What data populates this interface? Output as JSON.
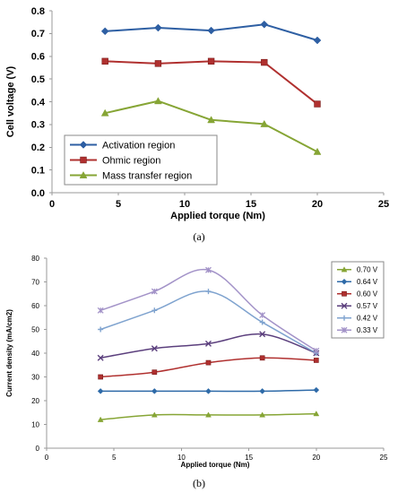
{
  "chart_data": [
    {
      "panel": "(a)",
      "type": "line",
      "title": "",
      "xlabel": "Applied torque (Nm)",
      "ylabel": "Cell voltage (V)",
      "xlim": [
        0,
        25
      ],
      "ylim": [
        0,
        0.8
      ],
      "x_ticks": [
        0,
        5,
        10,
        15,
        20,
        25
      ],
      "y_ticks": [
        0,
        0.1,
        0.2,
        0.3,
        0.4,
        0.5,
        0.6,
        0.7,
        0.8
      ],
      "grid": false,
      "legend_placement": "bottom-left",
      "x": [
        4,
        8,
        12,
        16,
        20
      ],
      "series": [
        {
          "name": "Activation region",
          "values": [
            0.71,
            0.725,
            0.713,
            0.74,
            0.67
          ],
          "color": "#2e5fa3",
          "marker": "diamond"
        },
        {
          "name": "Ohmic region",
          "values": [
            0.578,
            0.568,
            0.578,
            0.573,
            0.39
          ],
          "color": "#b0302f",
          "marker": "square"
        },
        {
          "name": "Mass transfer region",
          "values": [
            0.35,
            0.403,
            0.32,
            0.302,
            0.18
          ],
          "color": "#86a535",
          "marker": "triangle"
        }
      ]
    },
    {
      "panel": "(b)",
      "type": "line",
      "title": "",
      "xlabel": "Applied torque (Nm)",
      "ylabel": "Current density (mA/cm2)",
      "xlim": [
        0,
        25
      ],
      "ylim": [
        0,
        80
      ],
      "x_ticks": [
        0,
        5,
        10,
        15,
        20,
        25
      ],
      "y_ticks": [
        0,
        10,
        20,
        30,
        40,
        50,
        60,
        70,
        80
      ],
      "grid": false,
      "legend_placement": "right",
      "x": [
        4,
        8,
        12,
        16,
        20
      ],
      "series": [
        {
          "name": "0.70 V",
          "values": [
            12,
            14,
            14,
            14,
            14.5
          ],
          "color": "#86a535",
          "marker": "triangle"
        },
        {
          "name": "0.64 V",
          "values": [
            24,
            24,
            24,
            24,
            24.5
          ],
          "color": "#2e6aa8",
          "marker": "diamond"
        },
        {
          "name": "0.60 V",
          "values": [
            30,
            32,
            36,
            38,
            37
          ],
          "color": "#b0302f",
          "marker": "square"
        },
        {
          "name": "0.57 V",
          "values": [
            38,
            42,
            44,
            48,
            40
          ],
          "color": "#5b3f7d",
          "marker": "cross"
        },
        {
          "name": "0.42 V",
          "values": [
            50,
            58,
            66,
            53,
            40
          ],
          "color": "#7fa3cf",
          "marker": "plus"
        },
        {
          "name": "0.33 V",
          "values": [
            58,
            66,
            75,
            56,
            41
          ],
          "color": "#a393c8",
          "marker": "star"
        }
      ]
    }
  ],
  "captions": {
    "panel_a": "(a)",
    "panel_b": "(b)"
  }
}
